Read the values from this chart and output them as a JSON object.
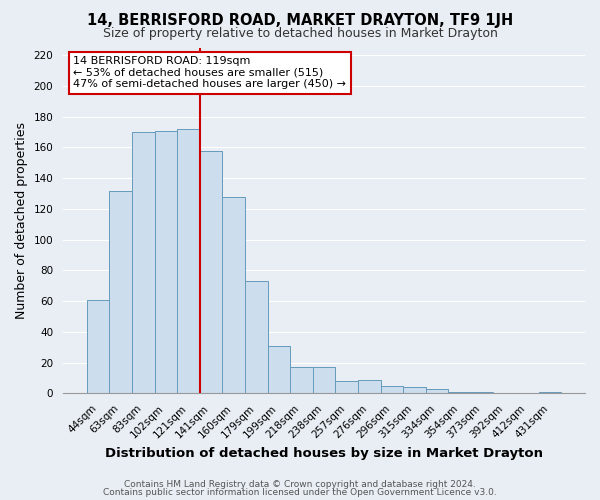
{
  "title": "14, BERRISFORD ROAD, MARKET DRAYTON, TF9 1JH",
  "subtitle": "Size of property relative to detached houses in Market Drayton",
  "xlabel": "Distribution of detached houses by size in Market Drayton",
  "ylabel": "Number of detached properties",
  "bar_labels": [
    "44sqm",
    "63sqm",
    "83sqm",
    "102sqm",
    "121sqm",
    "141sqm",
    "160sqm",
    "179sqm",
    "199sqm",
    "218sqm",
    "238sqm",
    "257sqm",
    "276sqm",
    "296sqm",
    "315sqm",
    "334sqm",
    "354sqm",
    "373sqm",
    "392sqm",
    "412sqm",
    "431sqm"
  ],
  "bar_heights": [
    61,
    132,
    170,
    171,
    172,
    158,
    128,
    73,
    31,
    17,
    17,
    8,
    9,
    5,
    4,
    3,
    1,
    1,
    0,
    0,
    1
  ],
  "bar_color": "#ccdded",
  "bar_edge_color": "#6699bb",
  "ref_line_index": 4,
  "ref_line_color": "#cc0000",
  "annotation_title": "14 BERRISFORD ROAD: 119sqm",
  "annotation_line1": "← 53% of detached houses are smaller (515)",
  "annotation_line2": "47% of semi-detached houses are larger (450) →",
  "annotation_box_facecolor": "#ffffff",
  "annotation_box_edgecolor": "#cc0000",
  "ylim": [
    0,
    225
  ],
  "yticks": [
    0,
    20,
    40,
    60,
    80,
    100,
    120,
    140,
    160,
    180,
    200,
    220
  ],
  "bg_color": "#e8eef4",
  "grid_color": "#ffffff",
  "footer1": "Contains HM Land Registry data © Crown copyright and database right 2024.",
  "footer2": "Contains public sector information licensed under the Open Government Licence v3.0.",
  "title_fontsize": 10.5,
  "subtitle_fontsize": 9,
  "axis_label_fontsize": 9,
  "tick_fontsize": 7.5,
  "annotation_fontsize": 8,
  "footer_fontsize": 6.5
}
